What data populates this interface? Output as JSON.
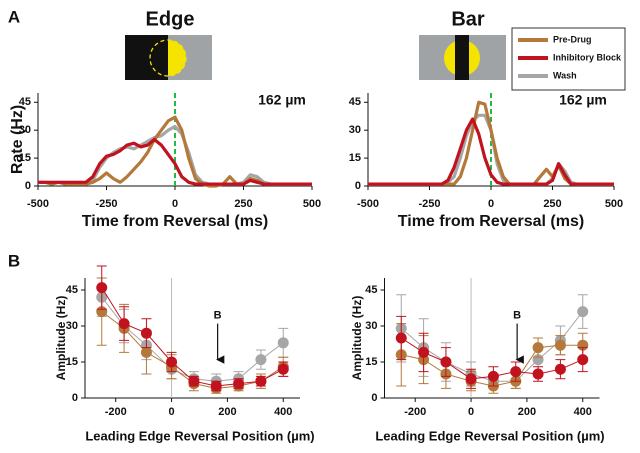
{
  "panel_labels": [
    "A",
    "B"
  ],
  "legend": {
    "entries": [
      {
        "name": "Pre-Drug",
        "color": "#b5783b"
      },
      {
        "name": "Inhibitory Block",
        "color": "#c1121f"
      },
      {
        "name": "Wash",
        "color": "#a6a6a6"
      }
    ]
  },
  "chart_data": [
    {
      "type": "line",
      "title": "Edge",
      "annotation": "162 µm",
      "ylabel": "Rate (Hz)",
      "xlabel": "Time from Reversal (ms)",
      "xlim": [
        -500,
        500
      ],
      "xticks": [
        -500,
        -250,
        0,
        250,
        500
      ],
      "ylim": [
        0,
        50
      ],
      "yticks": [
        0,
        15,
        30,
        45
      ],
      "vline": 0,
      "vline_color": "#22bb44",
      "x": [
        -500,
        -475,
        -450,
        -425,
        -400,
        -375,
        -350,
        -325,
        -300,
        -275,
        -250,
        -225,
        -200,
        -175,
        -150,
        -125,
        -100,
        -75,
        -50,
        -25,
        0,
        25,
        50,
        75,
        100,
        125,
        150,
        175,
        200,
        225,
        250,
        275,
        300,
        325,
        350,
        375,
        400,
        425,
        450,
        475,
        500
      ],
      "series": [
        {
          "color": "#a6a6a6",
          "values": [
            2,
            2,
            2,
            2,
            2,
            2,
            2,
            2,
            3,
            10,
            15,
            18,
            20,
            21,
            20,
            22,
            24,
            26,
            27,
            30,
            32,
            28,
            18,
            6,
            2,
            1,
            1,
            1,
            1,
            1,
            2,
            6,
            5,
            2,
            1,
            1,
            1,
            1,
            1,
            1,
            1
          ]
        },
        {
          "color": "#b5783b",
          "values": [
            2,
            2,
            1,
            2,
            1,
            1,
            1,
            1,
            2,
            4,
            7,
            4,
            2,
            5,
            9,
            13,
            18,
            25,
            30,
            35,
            37,
            30,
            15,
            4,
            1,
            0,
            0,
            1,
            5,
            1,
            1,
            4,
            3,
            1,
            1,
            1,
            1,
            1,
            1,
            1,
            1
          ]
        },
        {
          "color": "#c1121f",
          "values": [
            2,
            2,
            2,
            2,
            2,
            2,
            2,
            2,
            5,
            12,
            16,
            17,
            19,
            22,
            23,
            21,
            22,
            25,
            22,
            17,
            12,
            5,
            2,
            1,
            1,
            1,
            1,
            1,
            1,
            1,
            1,
            3,
            2,
            1,
            1,
            1,
            1,
            1,
            1,
            1,
            1
          ]
        }
      ]
    },
    {
      "type": "line",
      "title": "Bar",
      "annotation": "162 µm",
      "xlabel": "Time from Reversal (ms)",
      "xlim": [
        -500,
        500
      ],
      "xticks": [
        -500,
        -250,
        0,
        250,
        500
      ],
      "ylim": [
        0,
        50
      ],
      "yticks": [
        0,
        15,
        30,
        45
      ],
      "vline": 0,
      "vline_color": "#22bb44",
      "x": [
        -500,
        -475,
        -450,
        -425,
        -400,
        -375,
        -350,
        -325,
        -300,
        -275,
        -250,
        -225,
        -200,
        -175,
        -150,
        -125,
        -100,
        -75,
        -50,
        -25,
        0,
        25,
        50,
        75,
        100,
        125,
        150,
        175,
        200,
        225,
        250,
        275,
        300,
        325,
        350,
        375,
        400,
        425,
        450,
        475,
        500
      ],
      "series": [
        {
          "color": "#a6a6a6",
          "values": [
            1,
            1,
            1,
            1,
            1,
            1,
            1,
            1,
            1,
            1,
            1,
            1,
            1,
            2,
            5,
            15,
            27,
            35,
            38,
            38,
            30,
            12,
            3,
            1,
            1,
            1,
            1,
            1,
            1,
            1,
            4,
            12,
            8,
            2,
            1,
            1,
            1,
            1,
            1,
            1,
            1
          ]
        },
        {
          "color": "#b5783b",
          "values": [
            1,
            1,
            1,
            1,
            1,
            1,
            1,
            1,
            1,
            1,
            1,
            1,
            1,
            1,
            1,
            5,
            15,
            30,
            45,
            44,
            30,
            15,
            5,
            1,
            1,
            1,
            1,
            1,
            5,
            9,
            5,
            11,
            4,
            1,
            1,
            1,
            1,
            1,
            1,
            1,
            1
          ]
        },
        {
          "color": "#c1121f",
          "values": [
            1,
            1,
            1,
            1,
            1,
            1,
            1,
            1,
            1,
            1,
            1,
            1,
            1,
            3,
            10,
            20,
            30,
            36,
            28,
            15,
            6,
            2,
            1,
            1,
            1,
            1,
            1,
            1,
            1,
            1,
            3,
            12,
            6,
            1,
            1,
            1,
            1,
            1,
            1,
            1,
            1
          ]
        }
      ]
    },
    {
      "type": "scatter",
      "ylabel": "Amplitude (Hz)",
      "xlabel": "Leading Edge Reversal Position (µm)",
      "xlim": [
        -310,
        460
      ],
      "xticks": [
        -200,
        0,
        200,
        400
      ],
      "ylim": [
        0,
        50
      ],
      "yticks": [
        0,
        15,
        30,
        45
      ],
      "vline": 0,
      "vline_color": "#bbbbbb",
      "arrow": {
        "label": "B",
        "x": 165,
        "y": [
          31,
          16
        ]
      },
      "x": [
        -250,
        -170,
        -90,
        0,
        80,
        160,
        240,
        320,
        400
      ],
      "series": [
        {
          "color": "#a6a6a6",
          "values": [
            42,
            30,
            22,
            12,
            8,
            7,
            8,
            16,
            23
          ],
          "errors": [
            8,
            7,
            6,
            4,
            3,
            3,
            3,
            4,
            6
          ]
        },
        {
          "color": "#b5783b",
          "values": [
            36,
            29,
            19,
            13,
            6,
            4,
            5,
            7,
            13
          ],
          "errors": [
            14,
            10,
            9,
            5,
            3,
            2,
            2,
            3,
            4
          ]
        },
        {
          "color": "#c1121f",
          "values": [
            46,
            31,
            27,
            15,
            7,
            5,
            6,
            7,
            12
          ],
          "errors": [
            9,
            7,
            6,
            4,
            2,
            2,
            2,
            2,
            3
          ]
        }
      ]
    },
    {
      "type": "scatter",
      "ylabel": "Amplitude (Hz)",
      "xlabel": "Leading Edge Reversal Position (µm)",
      "xlim": [
        -310,
        460
      ],
      "xticks": [
        -200,
        0,
        200,
        400
      ],
      "ylim": [
        0,
        50
      ],
      "yticks": [
        0,
        15,
        30,
        45
      ],
      "vline": 0,
      "vline_color": "#bbbbbb",
      "arrow": {
        "label": "B",
        "x": 165,
        "y": [
          31,
          16
        ]
      },
      "x": [
        -250,
        -170,
        -90,
        0,
        80,
        160,
        240,
        320,
        400
      ],
      "series": [
        {
          "color": "#a6a6a6",
          "values": [
            29,
            21,
            15,
            10,
            7,
            7,
            16,
            24,
            36
          ],
          "errors": [
            14,
            12,
            8,
            5,
            3,
            3,
            5,
            6,
            7
          ]
        },
        {
          "color": "#b5783b",
          "values": [
            18,
            16,
            10,
            7,
            5,
            7,
            21,
            22,
            22
          ],
          "errors": [
            13,
            10,
            6,
            4,
            3,
            3,
            4,
            4,
            5
          ]
        },
        {
          "color": "#c1121f",
          "values": [
            25,
            19,
            15,
            8,
            9,
            11,
            10,
            12,
            16
          ],
          "errors": [
            9,
            8,
            6,
            4,
            4,
            4,
            3,
            4,
            5
          ]
        }
      ]
    }
  ]
}
